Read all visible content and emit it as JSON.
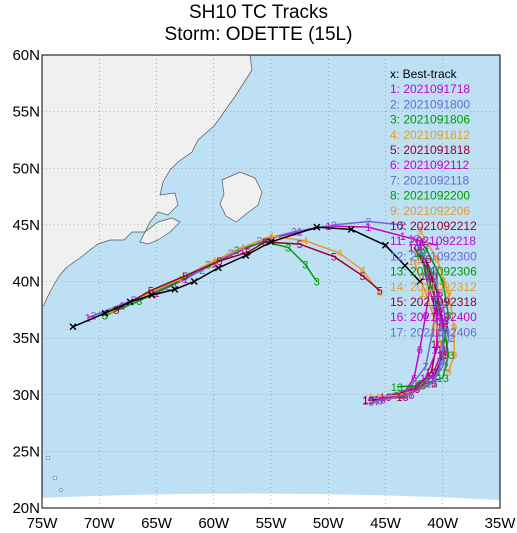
{
  "title_line1": "SH10 TC Tracks",
  "title_line2": "Storm: ODETTE (15L)",
  "map": {
    "lon_range": [
      -75,
      -35
    ],
    "lat_range": [
      20,
      60
    ],
    "lon_ticks": [
      "75W",
      "70W",
      "65W",
      "60W",
      "55W",
      "50W",
      "45W",
      "40W",
      "35W"
    ],
    "lat_ticks": [
      "20N",
      "25N",
      "30N",
      "35N",
      "40N",
      "45N",
      "50N",
      "55N",
      "60N"
    ],
    "ocean_color": "#bde0f5",
    "land_color": "#f0f0f0"
  },
  "legend": [
    {
      "label": "x: Best-track",
      "color": "#000000"
    },
    {
      "label": "1: 2021091718",
      "color": "#cc00cc"
    },
    {
      "label": "2: 2021091800",
      "color": "#6a6ad0"
    },
    {
      "label": "3: 2021091806",
      "color": "#009900"
    },
    {
      "label": "4: 2021091812",
      "color": "#e69b2e"
    },
    {
      "label": "5: 2021091818",
      "color": "#990033"
    },
    {
      "label": "6: 2021092112",
      "color": "#cc00cc"
    },
    {
      "label": "7: 2021092118",
      "color": "#6a6ad0"
    },
    {
      "label": "8: 2021092200",
      "color": "#009900"
    },
    {
      "label": "9: 2021092206",
      "color": "#e69b2e"
    },
    {
      "label": "10: 2021092212",
      "color": "#990033"
    },
    {
      "label": "11: 2021092218",
      "color": "#cc00cc"
    },
    {
      "label": "12: 2021092300",
      "color": "#6a6ad0"
    },
    {
      "label": "13: 2021092306",
      "color": "#009900"
    },
    {
      "label": "14: 2021092312",
      "color": "#e69b2e"
    },
    {
      "label": "15: 2021092318",
      "color": "#990033"
    },
    {
      "label": "16: 2021092400",
      "color": "#cc00cc"
    },
    {
      "label": "17: 2021092406",
      "color": "#6a6ad0"
    }
  ],
  "best_track": [
    [
      -72.3,
      36.0
    ],
    [
      -69.5,
      37.2
    ],
    [
      -67.3,
      38.2
    ],
    [
      -65.4,
      38.8
    ],
    [
      -63.4,
      39.3
    ],
    [
      -61.7,
      40.0
    ],
    [
      -59.6,
      41.2
    ],
    [
      -57.2,
      42.3
    ],
    [
      -55.0,
      43.5
    ],
    [
      -51.0,
      44.8
    ],
    [
      -48.0,
      44.6
    ],
    [
      -45.0,
      43.2
    ],
    [
      -43.3,
      41.4
    ],
    [
      -42.0,
      40.0
    ]
  ],
  "forecast_tracks": [
    {
      "id": "1",
      "color": "#cc00cc",
      "points": [
        [
          -71.0,
          36.8
        ],
        [
          -68.0,
          37.9
        ],
        [
          -65.0,
          39.0
        ],
        [
          -62.5,
          40.2
        ],
        [
          -60.0,
          41.6
        ],
        [
          -57.5,
          42.8
        ],
        [
          -55.0,
          43.8
        ],
        [
          -52.5,
          44.4
        ],
        [
          -50.0,
          44.9
        ],
        [
          -46.5,
          44.8
        ],
        [
          -43.5,
          44.0
        ],
        [
          -40.5,
          43.2
        ]
      ]
    },
    {
      "id": "2",
      "color": "#6a6ad0",
      "points": [
        [
          -70.5,
          37.0
        ],
        [
          -67.0,
          38.4
        ],
        [
          -64.0,
          39.6
        ],
        [
          -61.0,
          41.0
        ],
        [
          -58.5,
          42.5
        ],
        [
          -56.0,
          43.6
        ],
        [
          -53.0,
          44.4
        ],
        [
          -49.5,
          45.0
        ],
        [
          -46.5,
          45.3
        ],
        [
          -43.5,
          45.0
        ]
      ]
    },
    {
      "id": "3",
      "color": "#009900",
      "points": [
        [
          -69.5,
          37.0
        ],
        [
          -66.5,
          38.3
        ],
        [
          -63.5,
          39.8
        ],
        [
          -60.5,
          41.5
        ],
        [
          -58.0,
          42.8
        ],
        [
          -55.5,
          43.5
        ],
        [
          -53.5,
          43.0
        ],
        [
          -52.0,
          41.5
        ],
        [
          -51.0,
          40.0
        ]
      ]
    },
    {
      "id": "4",
      "color": "#e69b2e",
      "points": [
        [
          -69.0,
          37.4
        ],
        [
          -66.0,
          38.8
        ],
        [
          -63.0,
          40.2
        ],
        [
          -60.0,
          41.8
        ],
        [
          -57.5,
          43.0
        ],
        [
          -55.0,
          44.0
        ],
        [
          -52.0,
          43.6
        ],
        [
          -49.0,
          42.5
        ],
        [
          -47.0,
          41.0
        ],
        [
          -45.5,
          39.0
        ]
      ]
    },
    {
      "id": "5",
      "color": "#990033",
      "points": [
        [
          -68.5,
          37.5
        ],
        [
          -65.5,
          39.2
        ],
        [
          -62.5,
          40.5
        ],
        [
          -59.5,
          41.8
        ],
        [
          -57.0,
          42.6
        ],
        [
          -55.5,
          43.5
        ],
        [
          -52.5,
          43.3
        ],
        [
          -49.5,
          42.2
        ],
        [
          -47.0,
          40.5
        ],
        [
          -45.5,
          39.2
        ]
      ]
    },
    {
      "id": "6",
      "color": "#cc00cc",
      "points": [
        [
          -42.0,
          43.0
        ],
        [
          -41.0,
          40.5
        ],
        [
          -41.5,
          37.0
        ],
        [
          -42.0,
          34.0
        ],
        [
          -42.5,
          31.5
        ],
        [
          -43.5,
          30.0
        ],
        [
          -45.5,
          29.5
        ]
      ]
    },
    {
      "id": "7",
      "color": "#6a6ad0",
      "points": [
        [
          -41.8,
          43.5
        ],
        [
          -40.5,
          41.0
        ],
        [
          -40.5,
          38.0
        ],
        [
          -41.0,
          35.0
        ],
        [
          -41.5,
          32.5
        ],
        [
          -43.0,
          30.5
        ],
        [
          -46.0,
          29.6
        ]
      ]
    },
    {
      "id": "8",
      "color": "#009900",
      "points": [
        [
          -41.5,
          43.0
        ],
        [
          -40.0,
          40.0
        ],
        [
          -39.5,
          37.0
        ],
        [
          -40.0,
          34.0
        ],
        [
          -40.5,
          32.0
        ],
        [
          -42.0,
          31.0
        ]
      ]
    },
    {
      "id": "9",
      "color": "#e69b2e",
      "points": [
        [
          -42.0,
          44.5
        ],
        [
          -40.5,
          42.0
        ],
        [
          -39.5,
          39.0
        ],
        [
          -39.0,
          36.0
        ],
        [
          -39.0,
          33.5
        ],
        [
          -39.5,
          32.0
        ]
      ]
    },
    {
      "id": "10",
      "color": "#990033",
      "points": [
        [
          -42.5,
          43.0
        ],
        [
          -41.0,
          40.5
        ],
        [
          -40.5,
          37.5
        ],
        [
          -40.5,
          34.5
        ],
        [
          -41.0,
          32.0
        ],
        [
          -42.5,
          30.5
        ],
        [
          -45.0,
          29.8
        ]
      ]
    },
    {
      "id": "11",
      "color": "#cc00cc",
      "points": [
        [
          -42.0,
          43.5
        ],
        [
          -41.5,
          40.5
        ],
        [
          -40.5,
          37.0
        ],
        [
          -40.5,
          34.0
        ],
        [
          -41.5,
          31.5
        ],
        [
          -43.5,
          30.0
        ],
        [
          -46.5,
          29.6
        ]
      ]
    },
    {
      "id": "12",
      "color": "#6a6ad0",
      "points": [
        [
          -42.5,
          43.8
        ],
        [
          -41.0,
          41.0
        ],
        [
          -40.0,
          38.0
        ],
        [
          -39.5,
          35.0
        ],
        [
          -40.0,
          32.5
        ],
        [
          -41.0,
          31.0
        ]
      ]
    },
    {
      "id": "13",
      "color": "#009900",
      "points": [
        [
          -42.0,
          42.5
        ],
        [
          -41.0,
          39.5
        ],
        [
          -40.0,
          36.5
        ],
        [
          -39.5,
          33.5
        ],
        [
          -40.0,
          31.5
        ],
        [
          -42.0,
          30.8
        ],
        [
          -44.0,
          30.7
        ]
      ]
    },
    {
      "id": "14",
      "color": "#e69b2e",
      "points": [
        [
          -42.5,
          41.8
        ],
        [
          -41.5,
          39.0
        ],
        [
          -40.5,
          36.0
        ],
        [
          -40.0,
          33.5
        ],
        [
          -41.0,
          31.0
        ],
        [
          -43.5,
          30.0
        ],
        [
          -46.0,
          29.8
        ]
      ]
    },
    {
      "id": "15",
      "color": "#990033",
      "points": [
        [
          -41.5,
          42.0
        ],
        [
          -40.5,
          39.0
        ],
        [
          -40.0,
          36.0
        ],
        [
          -40.0,
          33.5
        ],
        [
          -41.0,
          31.0
        ],
        [
          -43.5,
          29.8
        ],
        [
          -46.5,
          29.5
        ]
      ]
    },
    {
      "id": "16",
      "color": "#cc00cc",
      "points": [
        [
          -40.5,
          39.0
        ],
        [
          -40.0,
          36.5
        ],
        [
          -40.0,
          34.0
        ],
        [
          -41.0,
          31.5
        ],
        [
          -43.0,
          30.0
        ],
        [
          -45.5,
          29.6
        ]
      ]
    },
    {
      "id": "17",
      "color": "#6a6ad0",
      "points": [
        [
          -40.5,
          38.0
        ],
        [
          -40.0,
          35.5
        ],
        [
          -40.0,
          33.0
        ],
        [
          -41.0,
          31.0
        ],
        [
          -43.0,
          30.0
        ],
        [
          -46.0,
          29.4
        ]
      ]
    }
  ]
}
